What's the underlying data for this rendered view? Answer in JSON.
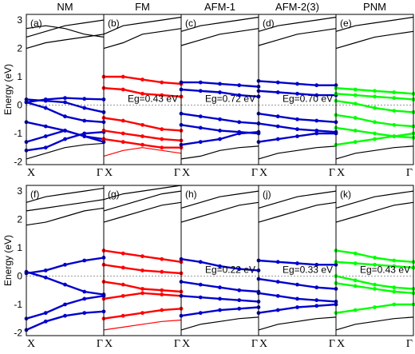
{
  "chart_data": {
    "type": "line",
    "description_axes": {
      "ylabel": "Energy (eV)",
      "yticks": [
        -2,
        -1,
        0,
        1,
        2,
        3
      ],
      "xticks": [
        "X",
        "Γ"
      ]
    },
    "colors": {
      "nonmagnetic": "#000000",
      "ferromagnetic_projection": "#ff0000",
      "projected_bands": "#0000cc",
      "pnm_projection": "#00ff00"
    },
    "rows": [
      {
        "ylim": [
          -2.1,
          3.2
        ],
        "panels": [
          {
            "label": "(a)",
            "title": "NM",
            "gap": "",
            "accent": "blue",
            "bands": [
              [
                -1.9,
                -1.7,
                -1.5,
                -1.4,
                -1.35
              ],
              [
                -1.6,
                -1.5,
                -1.2,
                -1.0,
                -0.95
              ],
              [
                -1.3,
                -1.1,
                -0.9,
                -1.1,
                -1.3
              ],
              [
                -0.6,
                -0.75,
                -0.9,
                -1.1,
                -1.2
              ],
              [
                0.1,
                -0.1,
                -0.4,
                -0.55,
                -0.6
              ],
              [
                0.2,
                0.15,
                0.1,
                -0.1,
                -0.25
              ],
              [
                0.1,
                0.2,
                0.25,
                0.22,
                0.2
              ],
              [
                2.0,
                2.2,
                2.3,
                2.4,
                2.5
              ],
              [
                2.4,
                2.6,
                2.8,
                2.9,
                3.0
              ],
              [
                2.7,
                2.8,
                2.7,
                2.5,
                2.4
              ]
            ]
          },
          {
            "label": "(b)",
            "title": "FM",
            "gap": "Eg=0.43 eV",
            "accent": "red",
            "bands": [
              [
                -1.8,
                -1.6,
                -1.5,
                -1.6,
                -1.7
              ],
              [
                -1.2,
                -1.3,
                -1.4,
                -1.5,
                -1.5
              ],
              [
                -0.9,
                -1.0,
                -1.1,
                -1.2,
                -1.25
              ],
              [
                -0.45,
                -0.55,
                -0.7,
                -0.85,
                -0.9
              ],
              [
                0.6,
                0.55,
                0.4,
                0.35,
                0.3
              ],
              [
                1.0,
                1.0,
                0.9,
                0.8,
                0.75
              ],
              [
                2.0,
                2.2,
                2.5,
                2.6,
                2.7
              ],
              [
                2.5,
                2.8,
                2.9,
                3.0,
                3.1
              ]
            ]
          },
          {
            "label": "(c)",
            "title": "AFM-1",
            "gap": "Eg=0.72 eV",
            "accent": "blue",
            "bands": [
              [
                -1.9,
                -1.8,
                -1.6,
                -1.5,
                -1.45
              ],
              [
                -1.4,
                -1.3,
                -1.2,
                -1.0,
                -0.95
              ],
              [
                -0.7,
                -0.8,
                -0.9,
                -0.95,
                -1.0
              ],
              [
                -0.3,
                -0.4,
                -0.5,
                -0.6,
                -0.65
              ],
              [
                0.55,
                0.5,
                0.45,
                0.35,
                0.3
              ],
              [
                0.8,
                0.8,
                0.75,
                0.7,
                0.65
              ],
              [
                2.1,
                2.3,
                2.5,
                2.6,
                2.7
              ],
              [
                2.6,
                2.8,
                2.9,
                3.0,
                3.1
              ]
            ]
          },
          {
            "label": "(d)",
            "title": "AFM-2(3)",
            "gap": "Eg=0.70 eV",
            "accent": "blue",
            "bands": [
              [
                -1.9,
                -1.7,
                -1.6,
                -1.5,
                -1.45
              ],
              [
                -1.3,
                -1.2,
                -1.1,
                -1.0,
                -1.0
              ],
              [
                -0.65,
                -0.75,
                -0.85,
                -0.9,
                -0.95
              ],
              [
                -0.3,
                -0.4,
                -0.5,
                -0.55,
                -0.6
              ],
              [
                0.5,
                0.45,
                0.4,
                0.35,
                0.35
              ],
              [
                0.85,
                0.8,
                0.75,
                0.7,
                0.7
              ],
              [
                2.1,
                2.3,
                2.5,
                2.6,
                2.7
              ],
              [
                2.6,
                2.8,
                2.9,
                3.0,
                3.1
              ]
            ]
          },
          {
            "label": "(e)",
            "title": "PNM",
            "gap": "",
            "accent": "green",
            "bands": [
              [
                -1.9,
                -1.7,
                -1.6,
                -1.5,
                -1.45
              ],
              [
                -1.4,
                -1.3,
                -1.2,
                -1.1,
                -1.0
              ],
              [
                -0.8,
                -0.9,
                -1.0,
                -1.1,
                -1.15
              ],
              [
                -0.35,
                -0.45,
                -0.6,
                -0.7,
                -0.75
              ],
              [
                0.15,
                0.05,
                -0.1,
                -0.2,
                -0.25
              ],
              [
                0.4,
                0.35,
                0.3,
                0.25,
                0.2
              ],
              [
                0.6,
                0.55,
                0.5,
                0.45,
                0.4
              ],
              [
                2.0,
                2.2,
                2.4,
                2.5,
                2.6
              ],
              [
                2.6,
                2.8,
                2.9,
                3.0,
                3.1
              ]
            ]
          }
        ]
      },
      {
        "ylim": [
          -2.1,
          3.2
        ],
        "panels": [
          {
            "label": "(f)",
            "title": "",
            "gap": "",
            "accent": "blue",
            "bands": [
              [
                -1.9,
                -1.6,
                -1.4,
                -1.3,
                -1.25
              ],
              [
                -1.5,
                -1.3,
                -1.0,
                -0.8,
                -0.7
              ],
              [
                0.15,
                -0.05,
                -0.3,
                -0.55,
                -0.65
              ],
              [
                0.1,
                0.2,
                0.4,
                0.55,
                0.65
              ],
              [
                1.8,
                1.9,
                2.1,
                2.3,
                2.4
              ],
              [
                2.3,
                2.4,
                2.5,
                2.6,
                2.7
              ],
              [
                2.6,
                2.8,
                2.9,
                3.0,
                3.1
              ]
            ]
          },
          {
            "label": "(g)",
            "title": "",
            "gap": "",
            "accent": "red",
            "bands": [
              [
                -1.9,
                -1.8,
                -1.7,
                -1.6,
                -1.55
              ],
              [
                -1.5,
                -1.4,
                -1.3,
                -1.2,
                -1.15
              ],
              [
                -0.8,
                -0.7,
                -0.6,
                -0.65,
                -0.7
              ],
              [
                -0.2,
                -0.3,
                -0.45,
                -0.5,
                -0.55
              ],
              [
                0.4,
                0.3,
                0.2,
                0.15,
                0.1
              ],
              [
                0.9,
                0.8,
                0.7,
                0.6,
                0.5
              ],
              [
                1.9,
                2.1,
                2.3,
                2.5,
                2.6
              ],
              [
                2.3,
                2.5,
                2.7,
                2.9,
                3.0
              ],
              [
                2.7,
                2.9,
                3.0,
                3.1,
                3.2
              ]
            ]
          },
          {
            "label": "(h)",
            "title": "",
            "gap": "Eg=0.22 eV",
            "accent": "blue",
            "bands": [
              [
                -1.9,
                -1.7,
                -1.6,
                -1.5,
                -1.45
              ],
              [
                -1.4,
                -1.3,
                -1.2,
                -1.15,
                -1.1
              ],
              [
                -0.7,
                -0.75,
                -0.8,
                -0.85,
                -0.9
              ],
              [
                -0.2,
                -0.3,
                -0.4,
                -0.5,
                -0.55
              ],
              [
                0.6,
                0.5,
                0.35,
                0.25,
                0.2
              ],
              [
                1.9,
                2.1,
                2.3,
                2.5,
                2.6
              ],
              [
                2.4,
                2.6,
                2.8,
                2.9,
                3.0
              ]
            ]
          },
          {
            "label": "(j)",
            "title": "",
            "gap": "Eg=0.33 eV",
            "accent": "blue",
            "bands": [
              [
                -1.9,
                -1.7,
                -1.6,
                -1.5,
                -1.45
              ],
              [
                -1.3,
                -1.2,
                -1.1,
                -1.05,
                -1.0
              ],
              [
                -0.6,
                -0.7,
                -0.8,
                -0.85,
                -0.9
              ],
              [
                -0.1,
                -0.2,
                -0.3,
                -0.4,
                -0.45
              ],
              [
                0.55,
                0.5,
                0.45,
                0.4,
                0.4
              ],
              [
                1.9,
                2.1,
                2.3,
                2.5,
                2.6
              ],
              [
                2.4,
                2.6,
                2.8,
                2.9,
                3.0
              ]
            ]
          },
          {
            "label": "(k)",
            "title": "",
            "gap": "Eg=0.43 eV",
            "accent": "green",
            "bands": [
              [
                -1.9,
                -1.7,
                -1.6,
                -1.5,
                -1.45
              ],
              [
                -1.3,
                -1.2,
                -1.1,
                -1.0,
                -1.0
              ],
              [
                -0.25,
                -0.35,
                -0.45,
                -0.55,
                -0.6
              ],
              [
                0.0,
                -0.15,
                -0.3,
                -0.4,
                -0.45
              ],
              [
                0.5,
                0.45,
                0.4,
                0.35,
                0.3
              ],
              [
                0.9,
                0.8,
                0.65,
                0.55,
                0.5
              ],
              [
                1.9,
                2.1,
                2.3,
                2.5,
                2.6
              ],
              [
                2.4,
                2.6,
                2.8,
                2.9,
                3.0
              ]
            ]
          }
        ]
      }
    ]
  }
}
